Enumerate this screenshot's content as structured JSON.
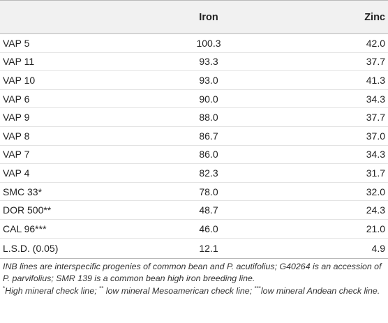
{
  "table": {
    "headers": [
      "",
      "Iron",
      "Zinc"
    ],
    "rows": [
      {
        "name": "VAP 5",
        "iron": "100.3",
        "zinc": "42.0"
      },
      {
        "name": "VAP 11",
        "iron": "93.3",
        "zinc": "37.7"
      },
      {
        "name": "VAP 10",
        "iron": "93.0",
        "zinc": "41.3"
      },
      {
        "name": "VAP 6",
        "iron": "90.0",
        "zinc": "34.3"
      },
      {
        "name": "VAP 9",
        "iron": "88.0",
        "zinc": "37.7"
      },
      {
        "name": "VAP 8",
        "iron": "86.7",
        "zinc": "37.0"
      },
      {
        "name": "VAP 7",
        "iron": "86.0",
        "zinc": "34.3"
      },
      {
        "name": "VAP 4",
        "iron": "82.3",
        "zinc": "31.7"
      },
      {
        "name": "SMC 33*",
        "iron": "78.0",
        "zinc": "32.0"
      },
      {
        "name": "DOR 500**",
        "iron": "48.7",
        "zinc": "24.3"
      },
      {
        "name": "CAL 96***",
        "iron": "46.0",
        "zinc": "21.0"
      },
      {
        "name": "L.S.D. (0.05)",
        "iron": "12.1",
        "zinc": "4.9"
      }
    ]
  },
  "footnotes": {
    "line1": "INB lines are interspecific progenies of common bean and P. acutifolius; G40264 is an accession of P. parvifolius; SMR 139 is a common bean high iron breeding line.",
    "mark1": "*",
    "text1": "High mineral check line; ",
    "mark2": "**",
    "text2": " low mineral Mesoamerican check line; ",
    "mark3": "***",
    "text3": "low mineral Andean check line."
  }
}
